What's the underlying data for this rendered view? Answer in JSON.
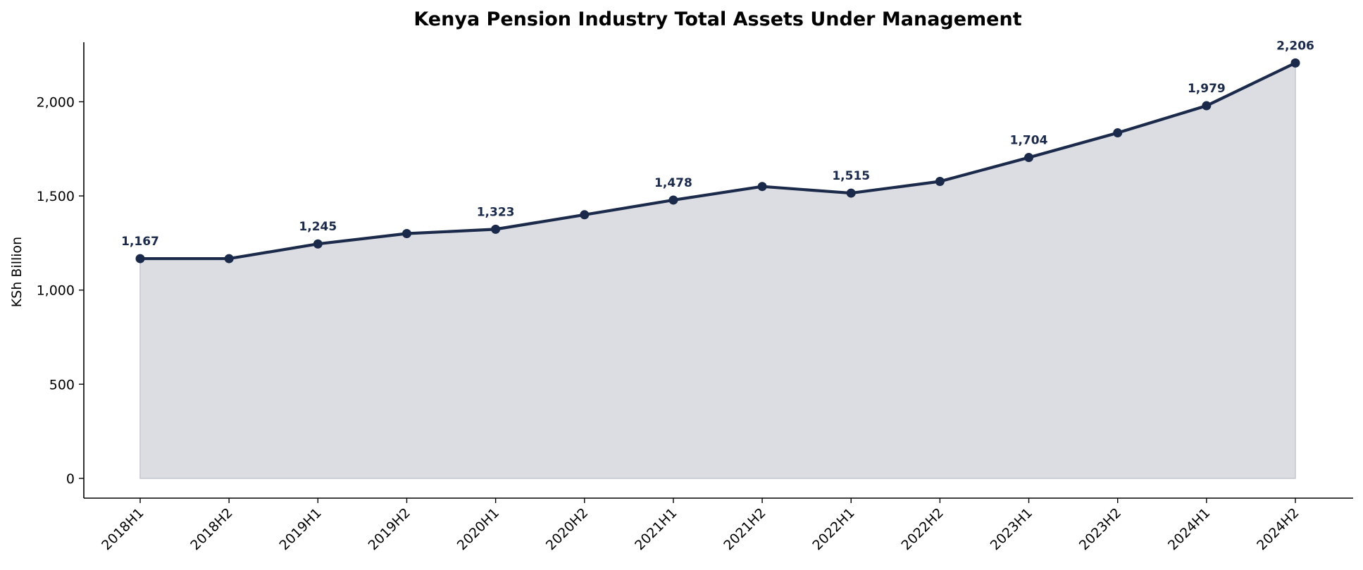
{
  "chart_data": {
    "type": "area",
    "title": "Kenya Pension Industry Total Assets Under Management",
    "xlabel": "",
    "ylabel": "KSh Billion",
    "categories": [
      "2018H1",
      "2018H2",
      "2019H1",
      "2019H2",
      "2020H1",
      "2020H2",
      "2021H1",
      "2021H2",
      "2022H1",
      "2022H2",
      "2023H1",
      "2023H2",
      "2024H1",
      "2024H2"
    ],
    "series": [
      {
        "values": [
          1167,
          1167,
          1245,
          1300,
          1323,
          1400,
          1478,
          1550,
          1515,
          1577,
          1704,
          1835,
          1979,
          2206
        ]
      }
    ],
    "data_labels": [
      {
        "index": 0,
        "text": "1,167"
      },
      {
        "index": 2,
        "text": "1,245"
      },
      {
        "index": 4,
        "text": "1,323"
      },
      {
        "index": 6,
        "text": "1,478"
      },
      {
        "index": 8,
        "text": "1,515"
      },
      {
        "index": 10,
        "text": "1,704"
      },
      {
        "index": 12,
        "text": "1,979"
      },
      {
        "index": 13,
        "text": "2,206"
      }
    ],
    "yticks": [
      0,
      500,
      1000,
      1500,
      2000
    ],
    "ytick_labels": [
      "0",
      "500",
      "1,000",
      "1,500",
      "2,000"
    ],
    "ylim": [
      -105,
      2316
    ],
    "grid": false,
    "legend": "none",
    "colors": {
      "line": "#1b2a4a",
      "fill": "#dcdde3",
      "fill_edge": "#c4c6cf"
    }
  }
}
